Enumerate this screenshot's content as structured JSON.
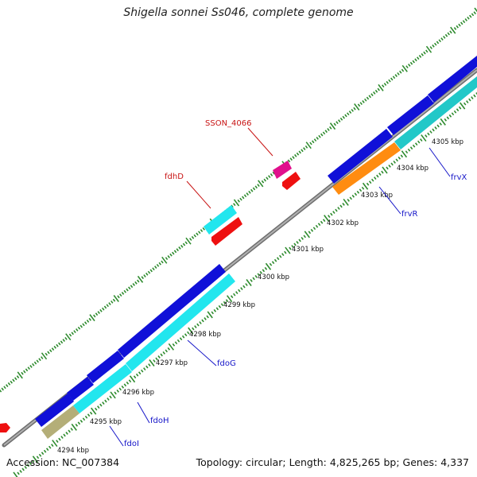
{
  "title": "Shigella sonnei Ss046, complete genome",
  "footer": {
    "accession": "Accession: NC_007384",
    "summary": "Topology: circular; Length: 4,825,265 bp; Genes: 4,337"
  },
  "colors": {
    "backbone": "#8a8a8a",
    "tick": "#2e8b2e",
    "plus_label": "#1414c8",
    "minus_label": "#c81414",
    "cds_blue": "#1010d8",
    "cds_cyan": "#22e6ee",
    "cds_teal": "#22c8c8",
    "cds_orange": "#ff8c10",
    "cds_khaki": "#b4ae78",
    "cds_red": "#ee1010",
    "cds_magenta": "#e0108c"
  },
  "ticks": [
    "4294 kbp",
    "4295 kbp",
    "4296 kbp",
    "4297 kbp",
    "4298 kbp",
    "4299 kbp",
    "4300 kbp",
    "4301 kbp",
    "4302 kbp",
    "4303 kbp",
    "4304 kbp",
    "4305 kbp"
  ],
  "genes": [
    {
      "label": "fdoI",
      "strand": "plus"
    },
    {
      "label": "fdoH",
      "strand": "plus"
    },
    {
      "label": "fdoG",
      "strand": "plus"
    },
    {
      "label": "frvR",
      "strand": "plus"
    },
    {
      "label": "frvX",
      "strand": "plus"
    },
    {
      "label": "fdhD",
      "strand": "minus"
    },
    {
      "label": "SSON_4066",
      "strand": "minus"
    }
  ]
}
